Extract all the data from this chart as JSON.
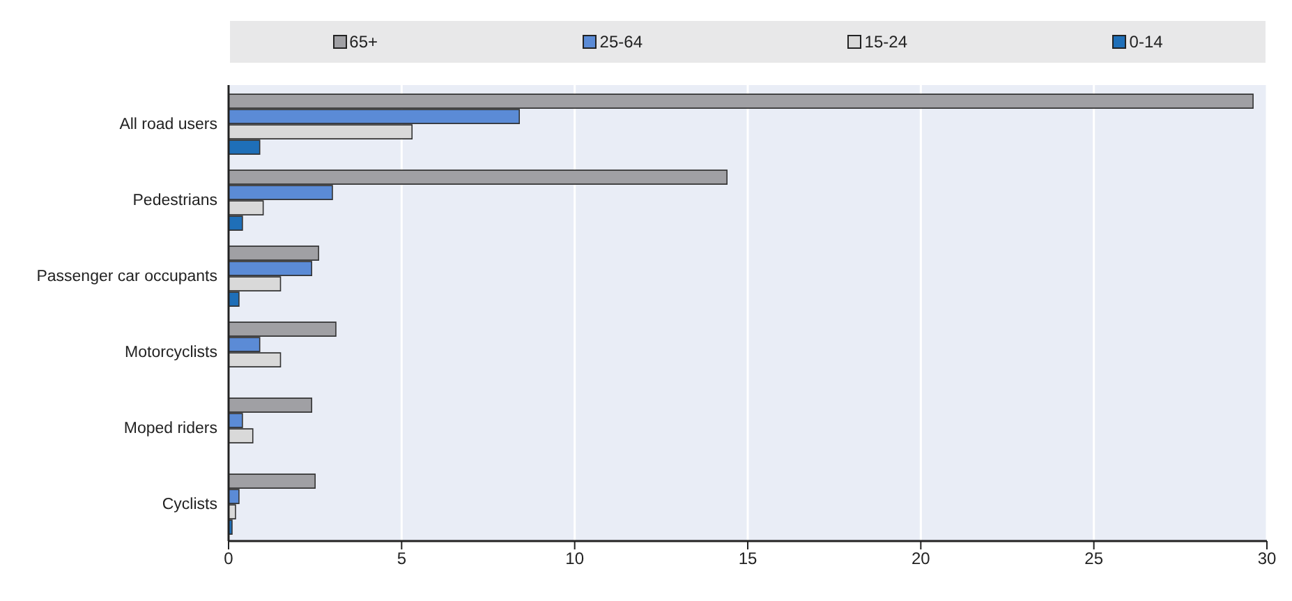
{
  "chart_data": {
    "type": "bar",
    "orientation": "horizontal",
    "categories": [
      "All road users",
      "Pedestrians",
      "Passenger car occupants",
      "Motorcyclists",
      "Moped riders",
      "Cyclists"
    ],
    "series": [
      {
        "name": "65+",
        "color": "#a0a0a4",
        "values": [
          29.6,
          14.4,
          2.6,
          3.1,
          2.4,
          2.5
        ]
      },
      {
        "name": "25-64",
        "color": "#5b8bd6",
        "values": [
          8.4,
          3.0,
          2.4,
          0.9,
          0.4,
          0.3
        ]
      },
      {
        "name": "15-24",
        "color": "#d9d9d9",
        "values": [
          5.3,
          1.0,
          1.5,
          1.5,
          0.7,
          0.2
        ]
      },
      {
        "name": "0-14",
        "color": "#1f6fb8",
        "values": [
          0.9,
          0.4,
          0.3,
          null,
          null,
          0.1
        ]
      }
    ],
    "xlim": [
      0,
      30
    ],
    "xticks": [
      0,
      5,
      10,
      15,
      20,
      25,
      30
    ],
    "grid": "x",
    "legend": "top"
  }
}
